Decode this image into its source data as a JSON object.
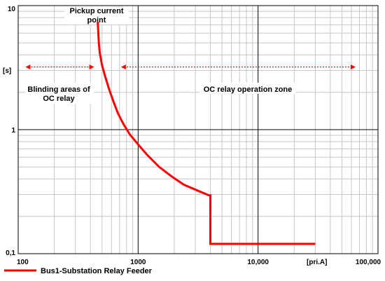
{
  "chart_data": {
    "type": "line",
    "x_scale": "log",
    "y_scale": "log",
    "xlim": [
      100,
      100000
    ],
    "ylim": [
      0.1,
      10
    ],
    "grid": true,
    "ylabel": "[s]",
    "xlabel": "[pri.A]",
    "x_tick_labels": [
      {
        "value": 100,
        "label": "100"
      },
      {
        "value": 1000,
        "label": "1000"
      },
      {
        "value": 10000,
        "label": "10,000"
      },
      {
        "value": 100000,
        "label": "100,000"
      }
    ],
    "y_tick_labels": [
      {
        "value": 10,
        "label": "10"
      },
      {
        "value": 1,
        "label": "1"
      },
      {
        "value": 0.1,
        "label": "0,1"
      }
    ],
    "series": [
      {
        "name": "Bus1-Substation Relay Feeder",
        "color": "#ff0000",
        "points": [
          [
            460,
            7.4
          ],
          [
            470,
            5.0
          ],
          [
            480,
            4.1
          ],
          [
            500,
            3.3
          ],
          [
            530,
            2.7
          ],
          [
            570,
            2.15
          ],
          [
            620,
            1.7
          ],
          [
            680,
            1.35
          ],
          [
            750,
            1.12
          ],
          [
            850,
            0.92
          ],
          [
            1000,
            0.76
          ],
          [
            1200,
            0.62
          ],
          [
            1500,
            0.5
          ],
          [
            1900,
            0.42
          ],
          [
            2400,
            0.36
          ],
          [
            3200,
            0.32
          ],
          [
            3900,
            0.295
          ],
          [
            4000,
            0.295
          ],
          [
            4000,
            0.12
          ],
          [
            30000,
            0.12
          ]
        ]
      }
    ],
    "annotations": {
      "pickup": {
        "lines": [
          "Pickup current",
          "point"
        ]
      },
      "blinding": {
        "lines": [
          "Blinding areas of",
          "OC relay"
        ],
        "arrow_range": [
          115,
          430
        ],
        "y": 3.2
      },
      "operation": {
        "lines": [
          "OC relay operation zone"
        ],
        "arrow_range": [
          720,
          65000
        ],
        "y": 3.2
      }
    }
  }
}
